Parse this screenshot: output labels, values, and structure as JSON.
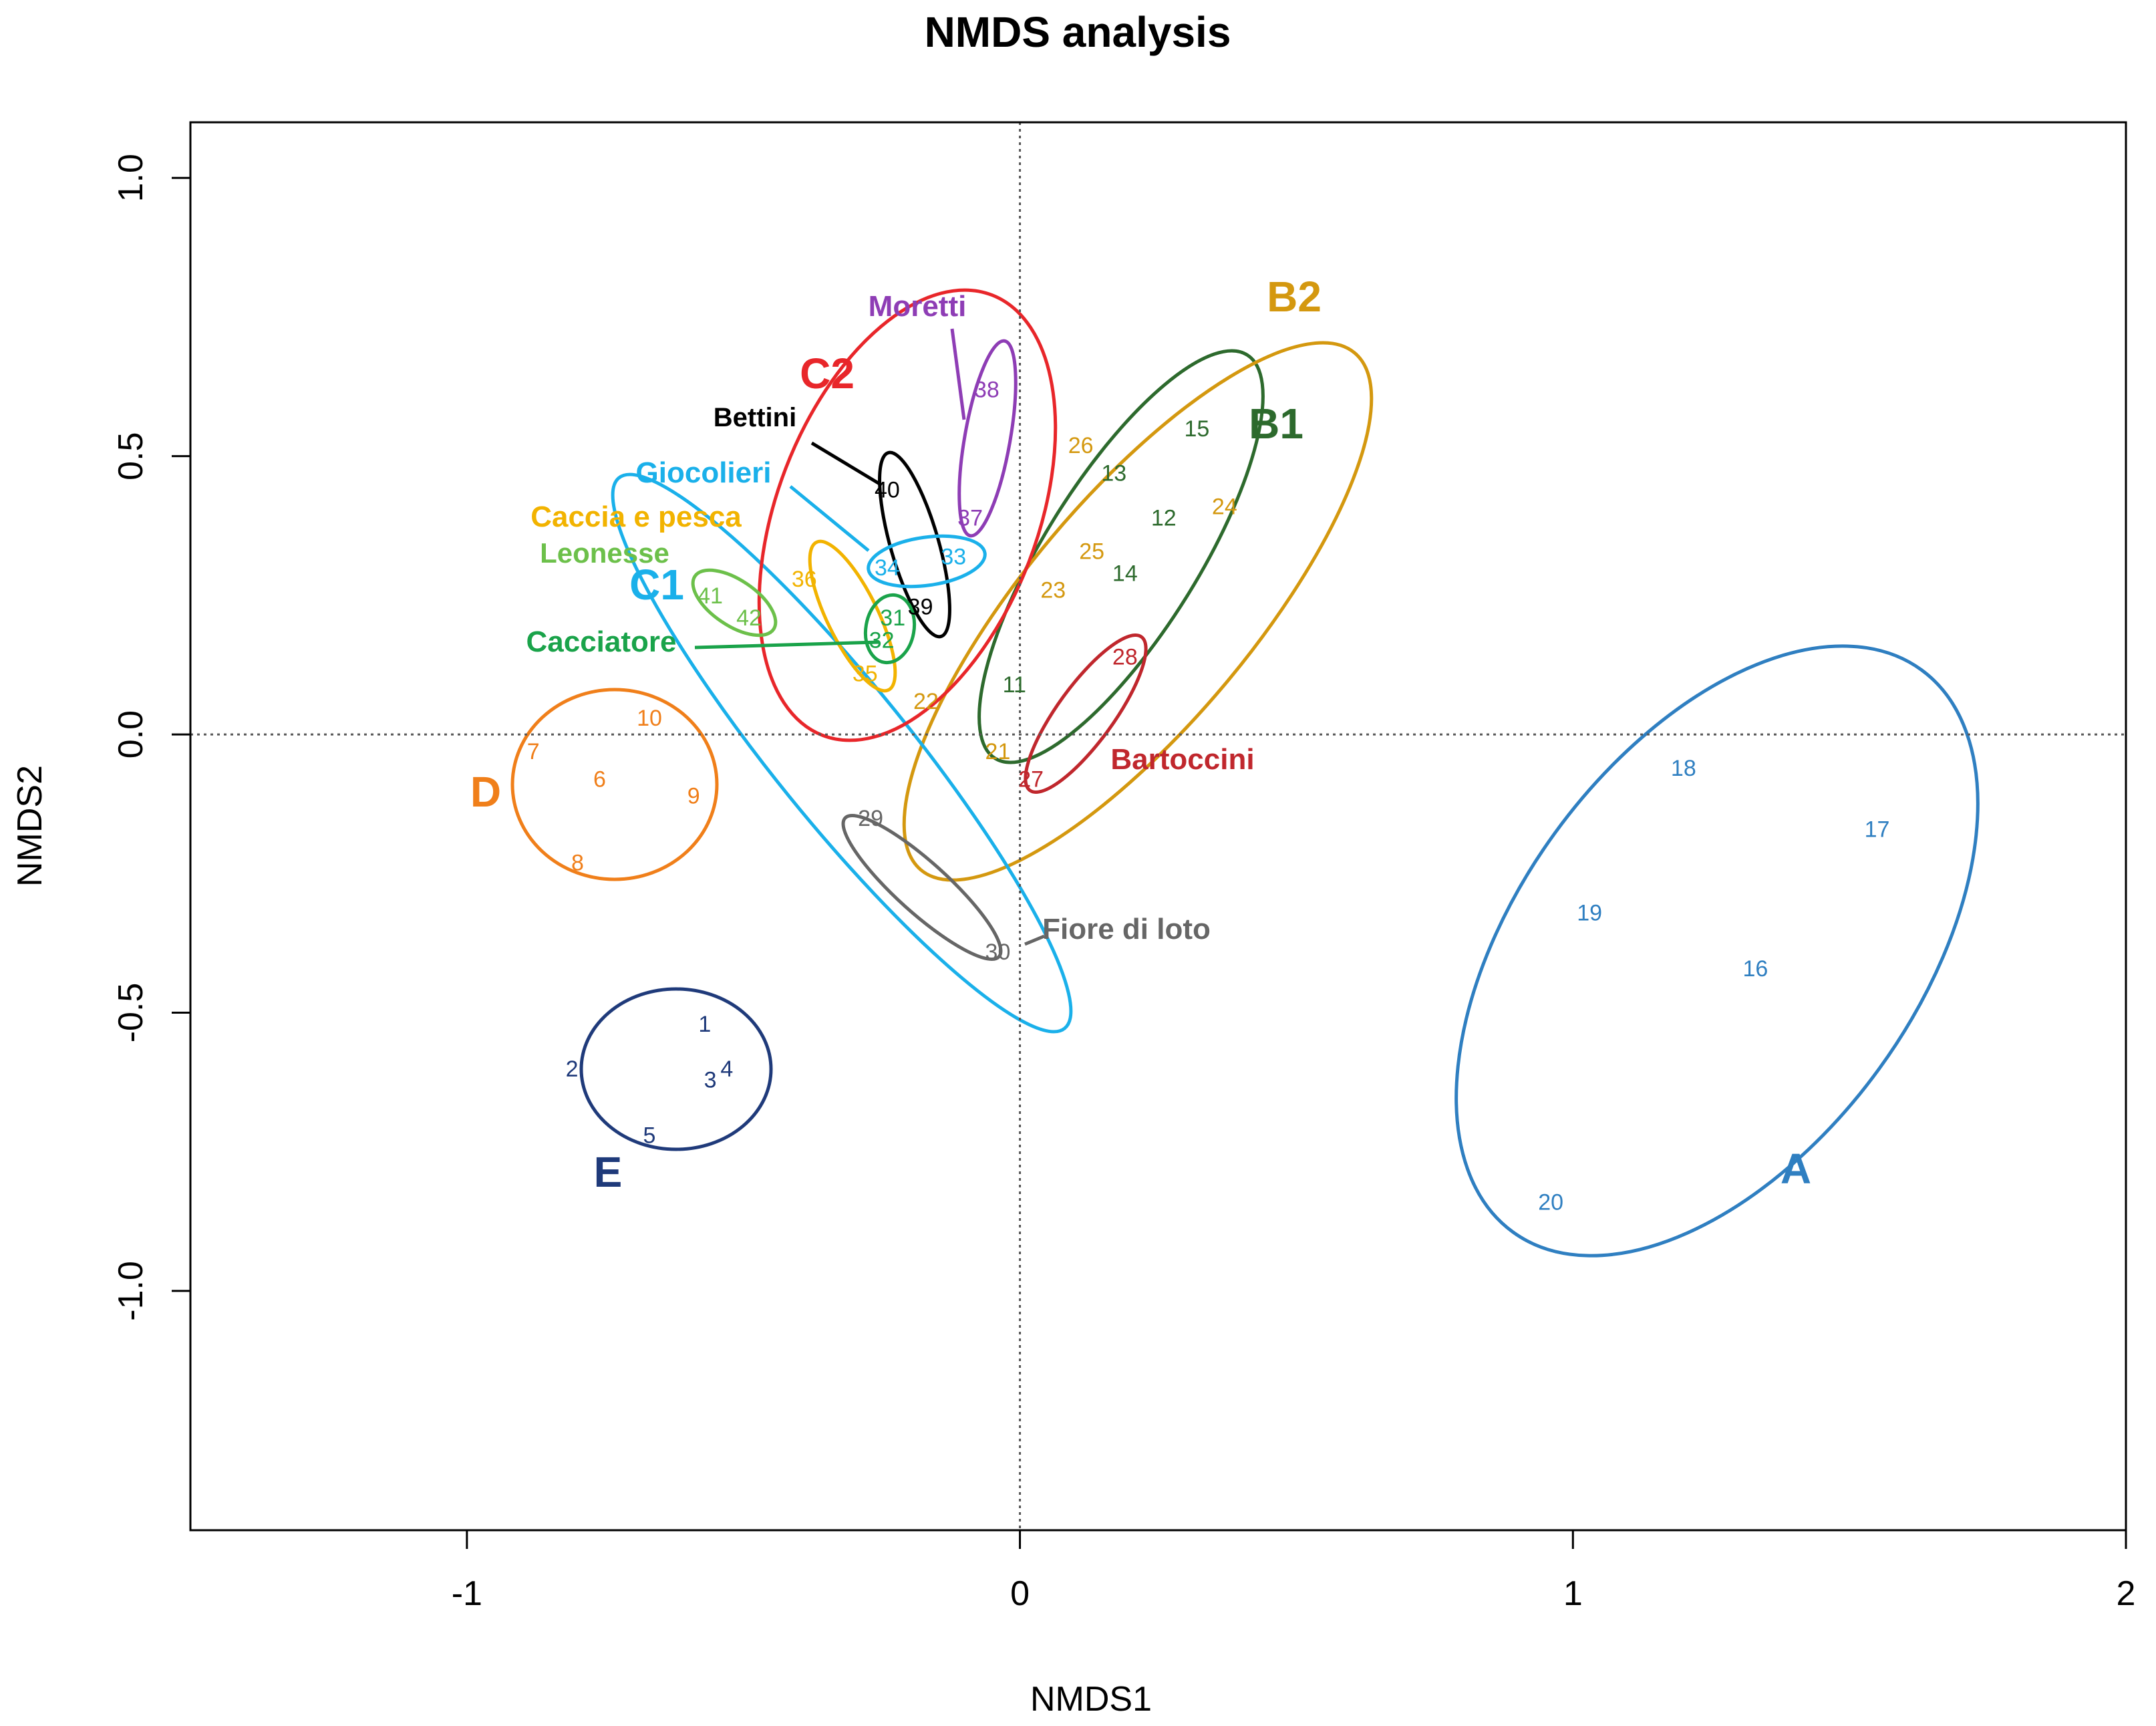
{
  "chart_data": {
    "type": "scatter",
    "title": "NMDS analysis",
    "xlabel": "NMDS1",
    "ylabel": "NMDS2",
    "xlim": [
      -1.5,
      2.0
    ],
    "ylim": [
      -1.43,
      1.1
    ],
    "xticks": [
      -1,
      0,
      1,
      2
    ],
    "xtick_labels": [
      "-1",
      "0",
      "1",
      "2"
    ],
    "yticks": [
      -1.0,
      -0.5,
      0.0,
      0.5,
      1.0
    ],
    "ytick_labels": [
      "-1.0",
      "-0.5",
      "0.0",
      "0.5",
      "1.0"
    ],
    "reference_lines": {
      "x": 0,
      "y": 0
    },
    "points": [
      {
        "id": "1",
        "x": -0.57,
        "y": -0.52,
        "color": "#1f3a7a"
      },
      {
        "id": "2",
        "x": -0.81,
        "y": -0.6,
        "color": "#1f3a7a"
      },
      {
        "id": "3",
        "x": -0.56,
        "y": -0.62,
        "color": "#1f3a7a"
      },
      {
        "id": "4",
        "x": -0.53,
        "y": -0.6,
        "color": "#1f3a7a"
      },
      {
        "id": "5",
        "x": -0.67,
        "y": -0.72,
        "color": "#1f3a7a"
      },
      {
        "id": "6",
        "x": -0.76,
        "y": -0.08,
        "color": "#f07f1a"
      },
      {
        "id": "7",
        "x": -0.88,
        "y": -0.03,
        "color": "#f07f1a"
      },
      {
        "id": "8",
        "x": -0.8,
        "y": -0.23,
        "color": "#f07f1a"
      },
      {
        "id": "9",
        "x": -0.59,
        "y": -0.11,
        "color": "#f07f1a"
      },
      {
        "id": "10",
        "x": -0.67,
        "y": 0.03,
        "color": "#f07f1a"
      },
      {
        "id": "11",
        "x": -0.01,
        "y": 0.09,
        "color": "#2d6a2d"
      },
      {
        "id": "12",
        "x": 0.26,
        "y": 0.39,
        "color": "#2d6a2d"
      },
      {
        "id": "13",
        "x": 0.17,
        "y": 0.47,
        "color": "#2d6a2d"
      },
      {
        "id": "14",
        "x": 0.19,
        "y": 0.29,
        "color": "#2d6a2d"
      },
      {
        "id": "15",
        "x": 0.32,
        "y": 0.55,
        "color": "#2d6a2d"
      },
      {
        "id": "16",
        "x": 1.33,
        "y": -0.42,
        "color": "#2f7fc1"
      },
      {
        "id": "17",
        "x": 1.55,
        "y": -0.17,
        "color": "#2f7fc1"
      },
      {
        "id": "18",
        "x": 1.2,
        "y": -0.06,
        "color": "#2f7fc1"
      },
      {
        "id": "19",
        "x": 1.03,
        "y": -0.32,
        "color": "#2f7fc1"
      },
      {
        "id": "20",
        "x": 0.96,
        "y": -0.84,
        "color": "#2f7fc1"
      },
      {
        "id": "21",
        "x": -0.04,
        "y": -0.03,
        "color": "#d4980f"
      },
      {
        "id": "22",
        "x": -0.17,
        "y": 0.06,
        "color": "#d4980f"
      },
      {
        "id": "23",
        "x": 0.06,
        "y": 0.26,
        "color": "#d4980f"
      },
      {
        "id": "24",
        "x": 0.37,
        "y": 0.41,
        "color": "#d4980f"
      },
      {
        "id": "25",
        "x": 0.13,
        "y": 0.33,
        "color": "#d4980f"
      },
      {
        "id": "26",
        "x": 0.11,
        "y": 0.52,
        "color": "#d4980f"
      },
      {
        "id": "27",
        "x": 0.02,
        "y": -0.08,
        "color": "#c0272d"
      },
      {
        "id": "28",
        "x": 0.19,
        "y": 0.14,
        "color": "#c0272d"
      },
      {
        "id": "29",
        "x": -0.27,
        "y": -0.15,
        "color": "#666666"
      },
      {
        "id": "30",
        "x": -0.04,
        "y": -0.39,
        "color": "#666666"
      },
      {
        "id": "31",
        "x": -0.23,
        "y": 0.21,
        "color": "#1aa34a"
      },
      {
        "id": "32",
        "x": -0.25,
        "y": 0.17,
        "color": "#1aa34a"
      },
      {
        "id": "33",
        "x": -0.12,
        "y": 0.32,
        "color": "#1ab0ea"
      },
      {
        "id": "34",
        "x": -0.24,
        "y": 0.3,
        "color": "#1ab0ea"
      },
      {
        "id": "35",
        "x": -0.28,
        "y": 0.11,
        "color": "#f2b300"
      },
      {
        "id": "36",
        "x": -0.39,
        "y": 0.28,
        "color": "#f2b300"
      },
      {
        "id": "37",
        "x": -0.09,
        "y": 0.39,
        "color": "#8e3db5"
      },
      {
        "id": "38",
        "x": -0.06,
        "y": 0.62,
        "color": "#8e3db5"
      },
      {
        "id": "39",
        "x": -0.18,
        "y": 0.23,
        "color": "#000000"
      },
      {
        "id": "40",
        "x": -0.24,
        "y": 0.44,
        "color": "#000000"
      },
      {
        "id": "41",
        "x": -0.56,
        "y": 0.25,
        "color": "#6cc04a"
      },
      {
        "id": "42",
        "x": -0.49,
        "y": 0.21,
        "color": "#6cc04a"
      }
    ],
    "groups": [
      {
        "label": "A",
        "color": "#2f7fc1",
        "members": [
          "16",
          "17",
          "18",
          "19",
          "20"
        ]
      },
      {
        "label": "B1",
        "color": "#2d6a2d",
        "members": [
          "11",
          "12",
          "13",
          "14",
          "15"
        ]
      },
      {
        "label": "B2",
        "color": "#d4980f",
        "members": [
          "21",
          "22",
          "23",
          "24",
          "25",
          "26"
        ]
      },
      {
        "label": "C1",
        "color": "#1ab0ea",
        "members": [
          "29",
          "30",
          "31",
          "32",
          "33",
          "34",
          "35",
          "36",
          "41",
          "42"
        ]
      },
      {
        "label": "C2",
        "color": "#e8262a",
        "members": [
          "33",
          "34",
          "35",
          "36",
          "37",
          "38",
          "39",
          "40"
        ]
      },
      {
        "label": "D",
        "color": "#f07f1a",
        "members": [
          "6",
          "7",
          "8",
          "9",
          "10"
        ]
      },
      {
        "label": "E",
        "color": "#1f3a7a",
        "members": [
          "1",
          "2",
          "3",
          "4",
          "5"
        ]
      },
      {
        "label": "Moretti",
        "color": "#8e3db5",
        "members": [
          "37",
          "38"
        ]
      },
      {
        "label": "Bettini",
        "color": "#000000",
        "members": [
          "39",
          "40"
        ]
      },
      {
        "label": "Giocolieri",
        "color": "#1ab0ea",
        "members": [
          "33",
          "34"
        ]
      },
      {
        "label": "Caccia e pesca",
        "color": "#f2b300",
        "members": [
          "35",
          "36"
        ]
      },
      {
        "label": "Leonesse",
        "color": "#6cc04a",
        "members": [
          "41",
          "42"
        ]
      },
      {
        "label": "Cacciatore",
        "color": "#1aa34a",
        "members": [
          "31",
          "32"
        ]
      },
      {
        "label": "Bartoccini",
        "color": "#c0272d",
        "members": [
          "27",
          "28"
        ]
      },
      {
        "label": "Fiore di loto",
        "color": "#666666",
        "members": [
          "29",
          "30"
        ]
      }
    ]
  }
}
